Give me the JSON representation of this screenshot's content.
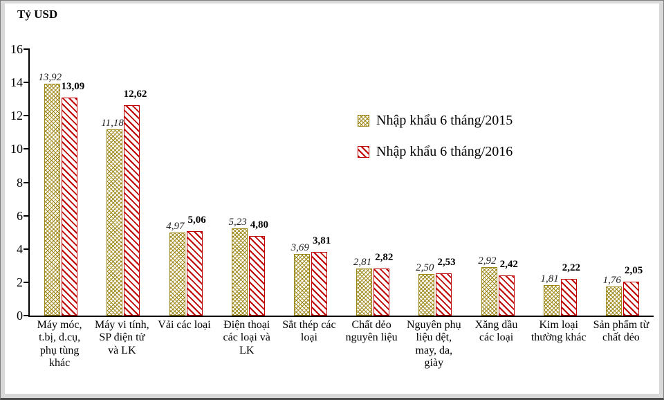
{
  "chart_data": {
    "type": "bar",
    "title": "",
    "ylabel": "Tỷ USD",
    "xlabel": "",
    "ylim": [
      0,
      16
    ],
    "yticks": [
      0,
      2,
      4,
      6,
      8,
      10,
      12,
      14,
      16
    ],
    "grid": false,
    "legend_position": "top-center-inside",
    "categories": [
      "Máy móc, t.bị, d.cụ, phụ tùng khác",
      "Máy vi tính, SP điện tử và LK",
      "Vải các loại",
      "Điện thoại các loại và LK",
      "Sắt thép các loại",
      "Chất dẻo nguyên liệu",
      "Nguyên phụ liệu dệt, may, da, giày",
      "Xăng dầu các loại",
      "Kim loại thường khác",
      "Sản phẩm từ chất dẻo"
    ],
    "series": [
      {
        "name": "Nhập khẩu 6 tháng/2015",
        "color": "#9C8412",
        "pattern": "diagonal-crosshatch",
        "values": [
          13.92,
          11.18,
          4.97,
          5.23,
          3.69,
          2.81,
          2.5,
          2.92,
          1.81,
          1.76
        ],
        "value_labels": [
          "13,92",
          "11,18",
          "4,97",
          "5,23",
          "3,69",
          "2,81",
          "2,50",
          "2,92",
          "1,81",
          "1,76"
        ]
      },
      {
        "name": "Nhập khẩu 6 tháng/2016",
        "color": "#C00000",
        "pattern": "diagonal-stripes",
        "values": [
          13.09,
          12.62,
          5.06,
          4.8,
          3.81,
          2.82,
          2.53,
          2.42,
          2.22,
          2.05
        ],
        "value_labels": [
          "13,09",
          "12,62",
          "5,06",
          "4,80",
          "3,81",
          "2,82",
          "2,53",
          "2,42",
          "2,22",
          "2,05"
        ]
      }
    ],
    "axis_color": "#000000",
    "plot_background": "#FFFFFF",
    "outer_background": "#D9D9D9"
  }
}
